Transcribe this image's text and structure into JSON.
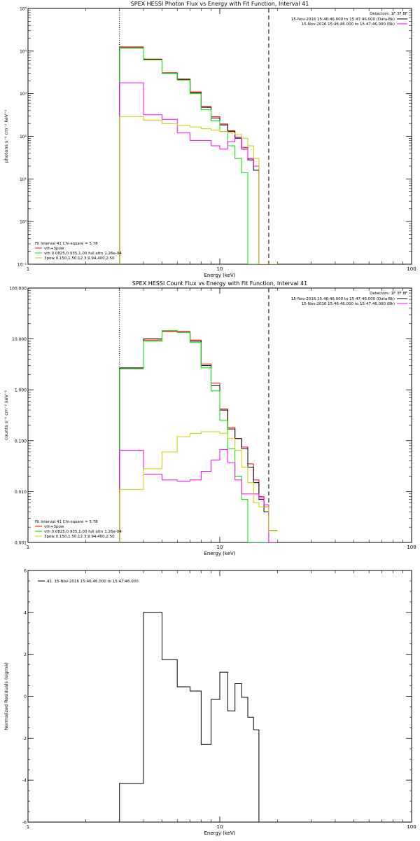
{
  "chart_data": [
    {
      "type": "line",
      "title": "SPEX HESSI Photon Flux vs Energy with Fit Function, Interval 41",
      "xlabel": "Energy (keV)",
      "ylabel": "photons s⁻¹ cm⁻² keV⁻¹",
      "xscale": "log",
      "yscale": "log",
      "xlim": [
        1,
        100
      ],
      "ylim": [
        0.1,
        100000
      ],
      "xticks": [
        {
          "v": 1,
          "label": "1"
        },
        {
          "v": 10,
          "label": "10"
        },
        {
          "v": 100,
          "label": "100"
        }
      ],
      "yticks": [
        {
          "v": 0.1,
          "label": "10⁻¹"
        },
        {
          "v": 1,
          "label": "10⁰"
        },
        {
          "v": 10,
          "label": "10¹"
        },
        {
          "v": 100,
          "label": "10²"
        },
        {
          "v": 1000,
          "label": "10³"
        },
        {
          "v": 10000,
          "label": "10⁴"
        },
        {
          "v": 100000,
          "label": "10⁵"
        }
      ],
      "vlines": [
        {
          "x": 3,
          "style": "dotted"
        },
        {
          "x": 18,
          "style": "dashed"
        }
      ],
      "edges": [
        3,
        4,
        5,
        6,
        7,
        8,
        9,
        10,
        11,
        12,
        13,
        14,
        15,
        16,
        17,
        18,
        19,
        20
      ],
      "legend_top_right": {
        "title": "Detectors: 1F 3F 8F",
        "entries": [
          {
            "text": "15-Nov-2016 15:46:46.000 to 15:47:46.000 (Data-Bk)",
            "color": "#000000"
          },
          {
            "text": "15-Nov-2016 15:46:46.000 to 15:47:46.000 (Bk)",
            "color": "#ff00ff"
          }
        ]
      },
      "legend_bottom_left": {
        "title": "Fit Interval 41   Chi-square = 5.78",
        "entries": [
          {
            "text": "vth+3pow",
            "color": "#ff0000"
          },
          {
            "text": "vth 0.0825,0.935,1.00  full attn 1.26e-04",
            "color": "#00dd00"
          },
          {
            "text": "3pow 0.150,1.50,12.3,9.94,400,2.50",
            "color": "#cccc00"
          }
        ]
      },
      "series": [
        {
          "color": "#ff0000",
          "values": [
            12500,
            6500,
            3100,
            2200,
            1100,
            500,
            290,
            195,
            135,
            95,
            55,
            30,
            20,
            0.1,
            0.1,
            0.1,
            0.1
          ]
        },
        {
          "color": "#000000",
          "values": [
            11800,
            6300,
            3000,
            2150,
            1050,
            480,
            270,
            185,
            130,
            90,
            50,
            28,
            16,
            0.1,
            0.1,
            0.1,
            0.1
          ]
        },
        {
          "color": "#00dd00",
          "values": [
            12000,
            6200,
            3000,
            2100,
            1000,
            420,
            230,
            130,
            60,
            30,
            14,
            0.1,
            0.1,
            0.1,
            0.1,
            0.1,
            0.1
          ]
        },
        {
          "color": "#ff00ff",
          "values": [
            1800,
            320,
            250,
            120,
            80,
            80,
            60,
            50,
            75,
            95,
            50,
            30,
            20,
            0.1,
            0.1,
            0.1,
            0.1
          ]
        },
        {
          "color": "#cccc00",
          "values": [
            290,
            240,
            200,
            180,
            165,
            150,
            140,
            130,
            120,
            110,
            90,
            60,
            30,
            0.1,
            0.1,
            0.1,
            0.1
          ]
        }
      ]
    },
    {
      "type": "line",
      "title": "SPEX HESSI Count Flux vs Energy with Fit Function, Interval 41",
      "xlabel": "Energy (keV)",
      "ylabel": "counts s⁻¹ cm⁻² keV⁻¹",
      "xscale": "log",
      "yscale": "log",
      "xlim": [
        1,
        100
      ],
      "ylim": [
        0.001,
        100
      ],
      "xticks": [
        {
          "v": 1,
          "label": "1"
        },
        {
          "v": 10,
          "label": "10"
        },
        {
          "v": 100,
          "label": "100"
        }
      ],
      "yticks": [
        {
          "v": 0.001,
          "label": "0.001"
        },
        {
          "v": 0.01,
          "label": "0.010"
        },
        {
          "v": 0.1,
          "label": "0.100"
        },
        {
          "v": 1,
          "label": "1.000"
        },
        {
          "v": 10,
          "label": "10.000"
        },
        {
          "v": 100,
          "label": "100.000"
        }
      ],
      "vlines": [
        {
          "x": 3,
          "style": "dotted"
        },
        {
          "x": 18,
          "style": "dashed"
        }
      ],
      "edges": [
        3,
        4,
        5,
        6,
        7,
        8,
        9,
        10,
        11,
        12,
        13,
        14,
        15,
        16,
        17,
        18,
        19,
        20
      ],
      "legend_top_right": {
        "title": "Detectors: 1F 3F 8F",
        "entries": [
          {
            "text": "15-Nov-2016 15:46:46.000 to 15:47:46.000 (Data-Bk)",
            "color": "#000000"
          },
          {
            "text": "15-Nov-2016 15:46:46.000 to 15:47:46.000 (Bk)",
            "color": "#ff00ff"
          }
        ]
      },
      "legend_bottom_left": {
        "title": "Fit Interval 41   Chi-square = 5.78",
        "entries": [
          {
            "text": "vth+3pow",
            "color": "#ff0000"
          },
          {
            "text": "vth 0.0825,0.935,1.00  full attn 1.26e-04",
            "color": "#00dd00"
          },
          {
            "text": "3pow 0.150,1.50,12.3,9.94,400,2.50",
            "color": "#cccc00"
          }
        ]
      },
      "series": [
        {
          "color": "#ff0000",
          "values": [
            2.6,
            9.5,
            14,
            14,
            9.5,
            3.2,
            1.35,
            0.42,
            0.18,
            0.11,
            0.075,
            0.035,
            0.017,
            0.008,
            0.005,
            0.0017,
            0.0017
          ]
        },
        {
          "color": "#000000",
          "values": [
            2.7,
            10,
            14.5,
            13.5,
            9,
            3,
            1.2,
            0.4,
            0.17,
            0.11,
            0.07,
            0.03,
            0.015,
            0.007,
            0.004,
            0.0017,
            0.0017
          ]
        },
        {
          "color": "#00dd00",
          "values": [
            2.6,
            9,
            14.5,
            13.5,
            8.5,
            2.7,
            0.95,
            0.25,
            0.07,
            0.02,
            0.007,
            0.001,
            0.001,
            0.001,
            0.001,
            0.001,
            0.001
          ]
        },
        {
          "color": "#ff00ff",
          "values": [
            0.065,
            0.022,
            0.017,
            0.016,
            0.017,
            0.025,
            0.042,
            0.067,
            0.037,
            0.017,
            0.009,
            0.009,
            0.009,
            0.0075,
            0.0055,
            0.001,
            0.001
          ]
        },
        {
          "color": "#cccc00",
          "values": [
            0.011,
            0.028,
            0.06,
            0.12,
            0.14,
            0.15,
            0.15,
            0.14,
            0.11,
            0.065,
            0.03,
            0.015,
            0.006,
            0.005,
            0.005,
            0.0017,
            0.0017
          ]
        }
      ]
    },
    {
      "type": "line",
      "title": "",
      "xlabel": "Energy (keV)",
      "ylabel": "Normalized Residuals (sigma)",
      "xscale": "log",
      "yscale": "linear",
      "xlim": [
        1,
        100
      ],
      "ylim": [
        -6,
        6
      ],
      "xticks": [
        {
          "v": 1,
          "label": "1"
        },
        {
          "v": 10,
          "label": "10"
        },
        {
          "v": 100,
          "label": "100"
        }
      ],
      "yticks": [
        {
          "v": -6,
          "label": "-6"
        },
        {
          "v": -4,
          "label": "-4"
        },
        {
          "v": -2,
          "label": "-2"
        },
        {
          "v": 0,
          "label": "0"
        },
        {
          "v": 2,
          "label": "2"
        },
        {
          "v": 4,
          "label": "4"
        },
        {
          "v": 6,
          "label": "6"
        }
      ],
      "vlines": [],
      "edges": [
        3,
        4,
        5,
        6,
        7,
        8,
        9,
        10,
        11,
        12,
        13,
        14,
        15,
        16,
        17,
        18
      ],
      "legend_top_left": {
        "entries": [
          {
            "text": "41. 15-Nov-2016 15:46:46.000 to 15:47:46.000",
            "color": "#000000"
          }
        ]
      },
      "series": [
        {
          "color": "#000000",
          "values": [
            -4.15,
            4.0,
            1.75,
            0.45,
            0.25,
            -2.3,
            -0.15,
            1.15,
            -0.7,
            0.6,
            -0.05,
            -1.0,
            -1.6,
            -6.0,
            -6.0
          ]
        }
      ]
    }
  ]
}
